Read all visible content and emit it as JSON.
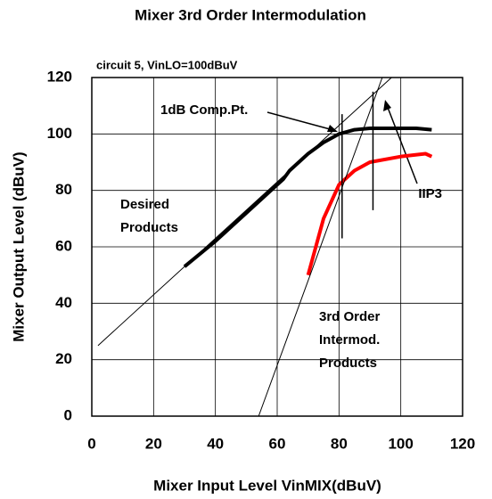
{
  "chart_data": {
    "type": "line",
    "title": "Mixer 3rd Order Intermodulation",
    "subtitle": "circuit 5, VinLO=100dBuV",
    "x_label": "Mixer Input Level VinMIX(dBuV)",
    "y_label": "Mixer Output Level (dBuV)",
    "xlim": [
      0,
      120
    ],
    "ylim": [
      0,
      120
    ],
    "xticks": [
      0,
      20,
      40,
      60,
      80,
      100,
      120
    ],
    "yticks": [
      0,
      20,
      40,
      60,
      80,
      100,
      120
    ],
    "grid": true,
    "annotations": [
      "1dB Comp.Pt.",
      "IIP3",
      "Desired",
      "Products",
      "3rd Order",
      "Intermod.",
      "Products"
    ],
    "series": [
      {
        "color": "#000000",
        "width": 4,
        "x": [
          30,
          40,
          50,
          60,
          62,
          64,
          70,
          75,
          80,
          85,
          90,
          100,
          105,
          110
        ],
        "values": [
          53,
          62,
          72,
          82,
          84,
          87,
          93,
          97,
          100,
          101.5,
          102,
          102,
          102,
          101.5
        ]
      },
      {
        "color": "#ff0000",
        "width": 4,
        "x": [
          70,
          75,
          80,
          85,
          90,
          100,
          108,
          110
        ],
        "values": [
          50,
          70,
          82,
          87,
          90,
          92,
          93,
          92
        ]
      },
      {
        "color": "#000000",
        "width": 1,
        "x": [
          2,
          97
        ],
        "values": [
          25,
          120
        ]
      },
      {
        "color": "#000000",
        "width": 1,
        "x": [
          54,
          94
        ],
        "values": [
          0,
          120
        ]
      },
      {
        "color": "#000000",
        "width": 1.5,
        "x": [
          81,
          81
        ],
        "values": [
          107,
          63
        ]
      },
      {
        "color": "#000000",
        "width": 1.5,
        "x": [
          91,
          91
        ],
        "values": [
          115,
          73
        ]
      }
    ]
  }
}
